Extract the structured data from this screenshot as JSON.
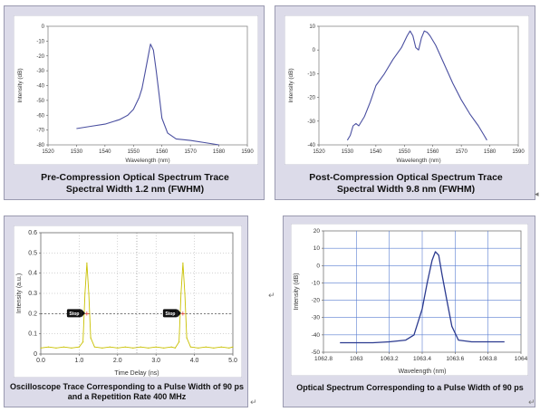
{
  "chart_data": [
    {
      "type": "line",
      "title": "Pre-Compression Optical Spectrum Trace",
      "subtitle": "Spectral Width 1.2 nm (FWHM)",
      "xlabel": "Wavelength (nm)",
      "ylabel": "Intensity (dB)",
      "xlim": [
        1520,
        1590
      ],
      "ylim": [
        -80,
        0
      ],
      "xticks": [
        "1520",
        "1530",
        "1540",
        "1550",
        "1560",
        "1570",
        "1580",
        "1590"
      ],
      "yticks": [
        "0",
        "-10",
        "-20",
        "-30",
        "-40",
        "-50",
        "-60",
        "-70",
        "-80"
      ],
      "grid": false,
      "color": "#4a4fa0",
      "x": [
        1530,
        1535,
        1540,
        1545,
        1548,
        1550,
        1552,
        1553,
        1554,
        1555,
        1556,
        1557,
        1558,
        1559,
        1560,
        1562,
        1565,
        1570,
        1575,
        1580
      ],
      "y": [
        -69,
        -67.5,
        -66,
        -63,
        -60,
        -56,
        -48,
        -42,
        -32,
        -22,
        -12,
        -16,
        -30,
        -46,
        -62,
        -72,
        -76,
        -77,
        -78.5,
        -80
      ]
    },
    {
      "type": "line",
      "title": "Post-Compression Optical Spectrum Trace",
      "subtitle": "Spectral Width 9.8 nm (FWHM)",
      "xlabel": "Wavelength (nm)",
      "ylabel": "Intensity (dB)",
      "xlim": [
        1520,
        1590
      ],
      "ylim": [
        -40,
        10
      ],
      "xticks": [
        "1520",
        "1530",
        "1540",
        "1550",
        "1560",
        "1570",
        "1580",
        "1590"
      ],
      "yticks": [
        "10",
        "0",
        "-10",
        "-20",
        "-30",
        "-40"
      ],
      "grid": false,
      "color": "#4a4fa0",
      "x": [
        1530,
        1531,
        1532,
        1533,
        1534,
        1536,
        1538,
        1540,
        1543,
        1546,
        1549,
        1551,
        1552,
        1553,
        1554,
        1555,
        1556,
        1557,
        1558,
        1559,
        1561,
        1564,
        1567,
        1570,
        1573,
        1576,
        1578,
        1579
      ],
      "y": [
        -38,
        -36,
        -32,
        -31,
        -32,
        -28,
        -22,
        -15,
        -10,
        -4,
        1,
        6,
        8,
        6,
        1,
        0,
        5,
        8,
        7.5,
        6,
        2,
        -6,
        -14,
        -21,
        -27,
        -32,
        -36,
        -38
      ]
    },
    {
      "type": "line",
      "title": "Oscilloscope Trace Corresponding to a Pulse Width of 90 ps and a Repetition Rate 400 MHz",
      "xlabel": "Time Delay (ns)",
      "ylabel": "Intensity (a.u.)",
      "xlim": [
        0,
        5
      ],
      "ylim": [
        0,
        0.6
      ],
      "xticks": [
        "0.0",
        "1.0",
        "2.0",
        "3.0",
        "4.0",
        "5.0"
      ],
      "yticks": [
        "0.6",
        "0.5",
        "0.4",
        "0.3",
        "0.2",
        "0.1",
        "0"
      ],
      "grid": true,
      "color": "#c9c100",
      "marker_level": 0.2,
      "markers": [
        {
          "x": 1.2,
          "label": "Stop"
        },
        {
          "x": 3.7,
          "label": "Stop"
        }
      ],
      "x": [
        0,
        0.2,
        0.4,
        0.6,
        0.8,
        1.0,
        1.1,
        1.15,
        1.2,
        1.25,
        1.3,
        1.4,
        1.6,
        1.8,
        2.0,
        2.2,
        2.4,
        2.6,
        2.8,
        3.0,
        3.2,
        3.4,
        3.5,
        3.6,
        3.65,
        3.7,
        3.75,
        3.8,
        3.9,
        4.1,
        4.3,
        4.5,
        4.7,
        4.9,
        5.0
      ],
      "y": [
        0.03,
        0.035,
        0.03,
        0.035,
        0.03,
        0.035,
        0.06,
        0.3,
        0.45,
        0.3,
        0.08,
        0.035,
        0.03,
        0.035,
        0.03,
        0.035,
        0.03,
        0.035,
        0.03,
        0.035,
        0.03,
        0.035,
        0.03,
        0.06,
        0.3,
        0.45,
        0.3,
        0.08,
        0.035,
        0.03,
        0.035,
        0.03,
        0.035,
        0.03,
        0.035
      ]
    },
    {
      "type": "line",
      "title": "Optical Spectrum Corresponding to a Pulse Width of 90 ps",
      "xlabel": "Wavelength (nm)",
      "ylabel": "Intensity (dB)",
      "xlim": [
        1062.8,
        1064.0
      ],
      "ylim": [
        -50,
        20
      ],
      "xticks": [
        "1062.8",
        "1063",
        "1063.2",
        "1063.4",
        "1063.6",
        "1063.8",
        "1064"
      ],
      "yticks": [
        "20",
        "10",
        "0",
        "-10",
        "-20",
        "-30",
        "-40",
        "-50"
      ],
      "grid": true,
      "color": "#2b3a8f",
      "x": [
        1062.9,
        1063.0,
        1063.1,
        1063.2,
        1063.3,
        1063.35,
        1063.4,
        1063.43,
        1063.46,
        1063.48,
        1063.5,
        1063.52,
        1063.55,
        1063.58,
        1063.62,
        1063.7,
        1063.8,
        1063.9
      ],
      "y": [
        -44.5,
        -44.5,
        -44.5,
        -44,
        -43,
        -40,
        -25,
        -10,
        3,
        8,
        6,
        -5,
        -20,
        -35,
        -43,
        -44,
        -44,
        -44
      ]
    }
  ],
  "captions": {
    "c1": [
      "Pre-Compression Optical Spectrum Trace",
      "Spectral Width 1.2 nm (FWHM)"
    ],
    "c2": [
      "Post-Compression Optical Spectrum Trace",
      "Spectral Width 9.8 nm (FWHM)"
    ],
    "c3": [
      "Oscilloscope Trace Corresponding to a Pulse Width of 90 ps",
      "and a Repetition Rate 400 MHz"
    ],
    "c4": [
      "Optical Spectrum Corresponding to a Pulse Width of 90 ps"
    ]
  },
  "paragraph_mark": "↵",
  "small_mark": "◂"
}
